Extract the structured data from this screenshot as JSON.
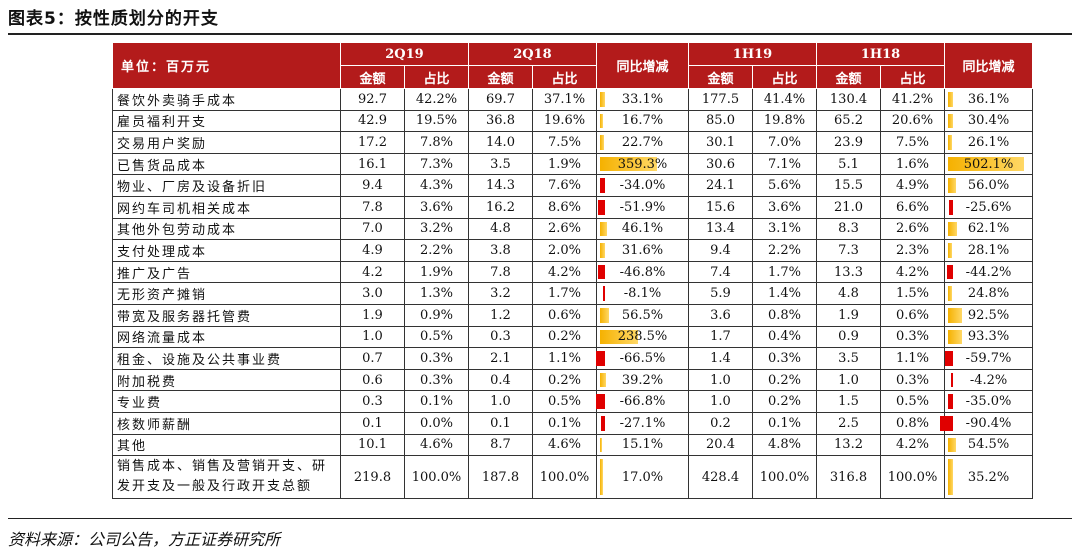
{
  "title": "图表5：按性质划分的开支",
  "source": "资料来源：公司公告，方正证券研究所",
  "colors": {
    "header_bg": "#b31b1b",
    "positive_bar": "#f5b100",
    "negative_bar": "#e00000"
  },
  "table": {
    "unit_label": "单位：百万元",
    "period_headers": [
      "2Q19",
      "2Q18",
      "1H19",
      "1H18"
    ],
    "change_header": "同比增减",
    "amount_header": "金额",
    "share_header": "占比",
    "rows": [
      {
        "name": "餐饮外卖骑手成本",
        "q19": "92.7",
        "q19p": "42.2%",
        "q18": "69.7",
        "q18p": "37.1%",
        "qchg": "33.1%",
        "qv": 33.1,
        "h19": "177.5",
        "h19p": "41.4%",
        "h18": "130.4",
        "h18p": "41.2%",
        "hchg": "36.1%",
        "hv": 36.1
      },
      {
        "name": "雇员福利开支",
        "q19": "42.9",
        "q19p": "19.5%",
        "q18": "36.8",
        "q18p": "19.6%",
        "qchg": "16.7%",
        "qv": 16.7,
        "h19": "85.0",
        "h19p": "19.8%",
        "h18": "65.2",
        "h18p": "20.6%",
        "hchg": "30.4%",
        "hv": 30.4
      },
      {
        "name": "交易用户奖励",
        "q19": "17.2",
        "q19p": "7.8%",
        "q18": "14.0",
        "q18p": "7.5%",
        "qchg": "22.7%",
        "qv": 22.7,
        "h19": "30.1",
        "h19p": "7.0%",
        "h18": "23.9",
        "h18p": "7.5%",
        "hchg": "26.1%",
        "hv": 26.1
      },
      {
        "name": "已售货品成本",
        "q19": "16.1",
        "q19p": "7.3%",
        "q18": "3.5",
        "q18p": "1.9%",
        "qchg": "359.3%",
        "qv": 359.3,
        "h19": "30.6",
        "h19p": "7.1%",
        "h18": "5.1",
        "h18p": "1.6%",
        "hchg": "502.1%",
        "hv": 502.1
      },
      {
        "name": "物业、厂房及设备折旧",
        "q19": "9.4",
        "q19p": "4.3%",
        "q18": "14.3",
        "q18p": "7.6%",
        "qchg": "-34.0%",
        "qv": -34.0,
        "h19": "24.1",
        "h19p": "5.6%",
        "h18": "15.5",
        "h18p": "4.9%",
        "hchg": "56.0%",
        "hv": 56.0
      },
      {
        "name": "网约车司机相关成本",
        "q19": "7.8",
        "q19p": "3.6%",
        "q18": "16.2",
        "q18p": "8.6%",
        "qchg": "-51.9%",
        "qv": -51.9,
        "h19": "15.6",
        "h19p": "3.6%",
        "h18": "21.0",
        "h18p": "6.6%",
        "hchg": "-25.6%",
        "hv": -25.6
      },
      {
        "name": "其他外包劳动成本",
        "q19": "7.0",
        "q19p": "3.2%",
        "q18": "4.8",
        "q18p": "2.6%",
        "qchg": "46.1%",
        "qv": 46.1,
        "h19": "13.4",
        "h19p": "3.1%",
        "h18": "8.3",
        "h18p": "2.6%",
        "hchg": "62.1%",
        "hv": 62.1
      },
      {
        "name": "支付处理成本",
        "q19": "4.9",
        "q19p": "2.2%",
        "q18": "3.8",
        "q18p": "2.0%",
        "qchg": "31.6%",
        "qv": 31.6,
        "h19": "9.4",
        "h19p": "2.2%",
        "h18": "7.3",
        "h18p": "2.3%",
        "hchg": "28.1%",
        "hv": 28.1
      },
      {
        "name": "推广及广告",
        "q19": "4.2",
        "q19p": "1.9%",
        "q18": "7.8",
        "q18p": "4.2%",
        "qchg": "-46.8%",
        "qv": -46.8,
        "h19": "7.4",
        "h19p": "1.7%",
        "h18": "13.3",
        "h18p": "4.2%",
        "hchg": "-44.2%",
        "hv": -44.2
      },
      {
        "name": "无形资产摊销",
        "q19": "3.0",
        "q19p": "1.3%",
        "q18": "3.2",
        "q18p": "1.7%",
        "qchg": "-8.1%",
        "qv": -8.1,
        "h19": "5.9",
        "h19p": "1.4%",
        "h18": "4.8",
        "h18p": "1.5%",
        "hchg": "24.8%",
        "hv": 24.8
      },
      {
        "name": "带宽及服务器托管费",
        "q19": "1.9",
        "q19p": "0.9%",
        "q18": "1.2",
        "q18p": "0.6%",
        "qchg": "56.5%",
        "qv": 56.5,
        "h19": "3.6",
        "h19p": "0.8%",
        "h18": "1.9",
        "h18p": "0.6%",
        "hchg": "92.5%",
        "hv": 92.5
      },
      {
        "name": "网络流量成本",
        "q19": "1.0",
        "q19p": "0.5%",
        "q18": "0.3",
        "q18p": "0.2%",
        "qchg": "238.5%",
        "qv": 238.5,
        "h19": "1.7",
        "h19p": "0.4%",
        "h18": "0.9",
        "h18p": "0.3%",
        "hchg": "93.3%",
        "hv": 93.3
      },
      {
        "name": "租金、设施及公共事业费",
        "q19": "0.7",
        "q19p": "0.3%",
        "q18": "2.1",
        "q18p": "1.1%",
        "qchg": "-66.5%",
        "qv": -66.5,
        "h19": "1.4",
        "h19p": "0.3%",
        "h18": "3.5",
        "h18p": "1.1%",
        "hchg": "-59.7%",
        "hv": -59.7
      },
      {
        "name": "附加税费",
        "q19": "0.6",
        "q19p": "0.3%",
        "q18": "0.4",
        "q18p": "0.2%",
        "qchg": "39.2%",
        "qv": 39.2,
        "h19": "1.0",
        "h19p": "0.2%",
        "h18": "1.0",
        "h18p": "0.3%",
        "hchg": "-4.2%",
        "hv": -4.2
      },
      {
        "name": "专业费",
        "q19": "0.3",
        "q19p": "0.1%",
        "q18": "1.0",
        "q18p": "0.5%",
        "qchg": "-66.8%",
        "qv": -66.8,
        "h19": "1.0",
        "h19p": "0.2%",
        "h18": "1.5",
        "h18p": "0.5%",
        "hchg": "-35.0%",
        "hv": -35.0
      },
      {
        "name": "核数师薪酬",
        "q19": "0.1",
        "q19p": "0.0%",
        "q18": "0.1",
        "q18p": "0.1%",
        "qchg": "-27.1%",
        "qv": -27.1,
        "h19": "0.2",
        "h19p": "0.1%",
        "h18": "2.5",
        "h18p": "0.8%",
        "hchg": "-90.4%",
        "hv": -90.4
      },
      {
        "name": "其他",
        "q19": "10.1",
        "q19p": "4.6%",
        "q18": "8.7",
        "q18p": "4.6%",
        "qchg": "15.1%",
        "qv": 15.1,
        "h19": "20.4",
        "h19p": "4.8%",
        "h18": "13.2",
        "h18p": "4.2%",
        "hchg": "54.5%",
        "hv": 54.5
      },
      {
        "name": "销售成本、销售及营销开支、研发开支及一般及行政开支总额",
        "q19": "219.8",
        "q19p": "100.0%",
        "q18": "187.8",
        "q18p": "100.0%",
        "qchg": "17.0%",
        "qv": 17.0,
        "h19": "428.4",
        "h19p": "100.0%",
        "h18": "316.8",
        "h18p": "100.0%",
        "hchg": "35.2%",
        "hv": 35.2
      }
    ]
  }
}
